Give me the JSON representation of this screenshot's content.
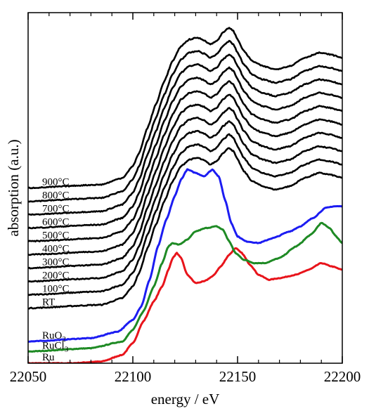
{
  "chart_data": {
    "type": "line",
    "title": "",
    "xlabel": "energy / eV",
    "ylabel": "absorption (a.u.)",
    "xlim": [
      22050,
      22200
    ],
    "ylim": [
      0,
      21
    ],
    "x_ticks": [
      22050,
      22100,
      22150,
      22200
    ],
    "x_tick_labels": [
      "22050",
      "22100",
      "22150",
      "22200"
    ],
    "y_ticks_shown": false,
    "grid": false,
    "legend": "inline labels at left",
    "series": [
      {
        "name": "Ru",
        "label_main": "Ru",
        "label_sub": "",
        "color": "#e8141b",
        "points": [
          [
            22050,
            0
          ],
          [
            22070,
            0
          ],
          [
            22085,
            0.1
          ],
          [
            22095,
            0.5
          ],
          [
            22100,
            1.2
          ],
          [
            22105,
            2.5
          ],
          [
            22110,
            3.7
          ],
          [
            22114,
            4.6
          ],
          [
            22117,
            5.6
          ],
          [
            22119,
            6.3
          ],
          [
            22121,
            6.6
          ],
          [
            22123,
            6.3
          ],
          [
            22126,
            5.3
          ],
          [
            22130,
            4.8
          ],
          [
            22134,
            4.9
          ],
          [
            22138,
            5.2
          ],
          [
            22142,
            5.8
          ],
          [
            22146,
            6.5
          ],
          [
            22149,
            6.9
          ],
          [
            22152,
            6.6
          ],
          [
            22156,
            5.9
          ],
          [
            22160,
            5.3
          ],
          [
            22165,
            5.0
          ],
          [
            22170,
            5.1
          ],
          [
            22178,
            5.3
          ],
          [
            22184,
            5.6
          ],
          [
            22190,
            6.0
          ],
          [
            22195,
            5.8
          ],
          [
            22200,
            5.6
          ]
        ]
      },
      {
        "name": "RuCl3",
        "label_main": "RuCl",
        "label_sub": "3",
        "color": "#1e8a24",
        "points": [
          [
            22050,
            0.7
          ],
          [
            22080,
            0.9
          ],
          [
            22095,
            1.3
          ],
          [
            22100,
            2.0
          ],
          [
            22105,
            3.1
          ],
          [
            22110,
            4.6
          ],
          [
            22114,
            6.0
          ],
          [
            22117,
            7.0
          ],
          [
            22119,
            7.2
          ],
          [
            22122,
            7.1
          ],
          [
            22126,
            7.4
          ],
          [
            22130,
            7.9
          ],
          [
            22135,
            8.1
          ],
          [
            22140,
            8.2
          ],
          [
            22143,
            8.0
          ],
          [
            22146,
            7.3
          ],
          [
            22149,
            6.6
          ],
          [
            22153,
            6.2
          ],
          [
            22158,
            6.0
          ],
          [
            22163,
            6.0
          ],
          [
            22170,
            6.3
          ],
          [
            22178,
            7.0
          ],
          [
            22185,
            7.7
          ],
          [
            22190,
            8.4
          ],
          [
            22194,
            8.1
          ],
          [
            22197,
            7.6
          ],
          [
            22200,
            7.2
          ]
        ]
      },
      {
        "name": "RuO2",
        "label_main": "RuO",
        "label_sub": "2",
        "color": "#1c1cf2",
        "points": [
          [
            22050,
            1.3
          ],
          [
            22080,
            1.5
          ],
          [
            22093,
            1.9
          ],
          [
            22100,
            2.6
          ],
          [
            22104,
            3.4
          ],
          [
            22108,
            5.0
          ],
          [
            22112,
            7.0
          ],
          [
            22116,
            8.6
          ],
          [
            22120,
            10.0
          ],
          [
            22123,
            11.0
          ],
          [
            22126,
            11.6
          ],
          [
            22130,
            11.4
          ],
          [
            22134,
            11.2
          ],
          [
            22138,
            11.6
          ],
          [
            22141,
            11.2
          ],
          [
            22144,
            9.8
          ],
          [
            22147,
            8.4
          ],
          [
            22150,
            7.6
          ],
          [
            22154,
            7.3
          ],
          [
            22160,
            7.2
          ],
          [
            22167,
            7.5
          ],
          [
            22175,
            7.9
          ],
          [
            22180,
            8.2
          ],
          [
            22186,
            8.7
          ],
          [
            22192,
            9.3
          ],
          [
            22196,
            9.4
          ],
          [
            22200,
            9.4
          ]
        ]
      }
    ],
    "stack": {
      "labels": [
        "RT",
        "100°C",
        "200°C",
        "300°C",
        "400°C",
        "500°C",
        "600°C",
        "700°C",
        "800°C",
        "900°C"
      ],
      "color": "#000000",
      "offset_start": 3.3,
      "offset_step": 0.8,
      "base_shape": [
        [
          22050,
          0
        ],
        [
          22085,
          0.2
        ],
        [
          22095,
          0.6
        ],
        [
          22100,
          1.3
        ],
        [
          22103,
          2.1
        ],
        [
          22107,
          3.6
        ],
        [
          22111,
          5.0
        ],
        [
          22115,
          6.4
        ],
        [
          22119,
          7.6
        ],
        [
          22123,
          8.5
        ],
        [
          22127,
          8.9
        ],
        [
          22131,
          9.0
        ],
        [
          22134,
          8.85
        ],
        [
          22137,
          8.6
        ],
        [
          22140,
          8.8
        ],
        [
          22143,
          9.3
        ],
        [
          22146,
          9.6
        ],
        [
          22148,
          9.4
        ],
        [
          22150,
          8.9
        ],
        [
          22153,
          8.2
        ],
        [
          22157,
          7.6
        ],
        [
          22162,
          7.3
        ],
        [
          22168,
          7.1
        ],
        [
          22175,
          7.3
        ],
        [
          22182,
          7.8
        ],
        [
          22189,
          8.1
        ],
        [
          22194,
          8.0
        ],
        [
          22200,
          7.8
        ]
      ]
    }
  }
}
